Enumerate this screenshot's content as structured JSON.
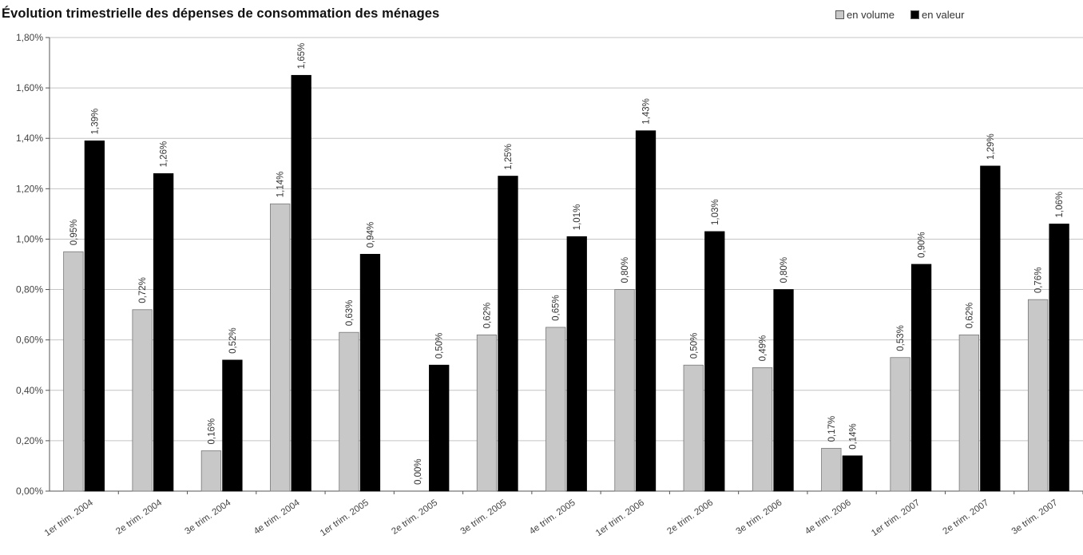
{
  "chart_data": {
    "type": "bar",
    "title": "Évolution trimestrielle des dépenses de consommation des ménages",
    "xlabel": "",
    "ylabel": "",
    "ylim": [
      0,
      1.8
    ],
    "yticks": [
      "0,00%",
      "0,20%",
      "0,40%",
      "0,60%",
      "0,80%",
      "1,00%",
      "1,20%",
      "1,40%",
      "1,60%",
      "1,80%"
    ],
    "grid": true,
    "legend_position": "top-right",
    "categories": [
      "1er trim. 2004",
      "2e trim. 2004",
      "3e trim. 2004",
      "4e trim. 2004",
      "1er trim. 2005",
      "2e trim. 2005",
      "3e trim. 2005",
      "4e trim. 2005",
      "1er trim. 2006",
      "2e trim. 2006",
      "3e trim. 2006",
      "4e trim. 2006",
      "1er trim. 2007",
      "2e trim. 2007",
      "3e trim. 2007"
    ],
    "series": [
      {
        "name": "en volume",
        "color": "#c8c8c8",
        "values": [
          0.95,
          0.72,
          0.16,
          1.14,
          0.63,
          0.0,
          0.62,
          0.65,
          0.8,
          0.5,
          0.49,
          0.17,
          0.53,
          0.62,
          0.76
        ],
        "labels": [
          "0,95%",
          "0,72%",
          "0,16%",
          "1,14%",
          "0,63%",
          "0,00%",
          "0,62%",
          "0,65%",
          "0,80%",
          "0,50%",
          "0,49%",
          "0,17%",
          "0,53%",
          "0,62%",
          "0,76%"
        ]
      },
      {
        "name": "en valeur",
        "color": "#000000",
        "values": [
          1.39,
          1.26,
          0.52,
          1.65,
          0.94,
          0.5,
          1.25,
          1.01,
          1.43,
          1.03,
          0.8,
          0.14,
          0.9,
          1.29,
          1.06
        ],
        "labels": [
          "1,39%",
          "1,26%",
          "0,52%",
          "1,65%",
          "0,94%",
          "0,50%",
          "1,25%",
          "1,01%",
          "1,43%",
          "1,03%",
          "0,80%",
          "0,14%",
          "0,90%",
          "1,29%",
          "1,06%"
        ]
      }
    ]
  }
}
